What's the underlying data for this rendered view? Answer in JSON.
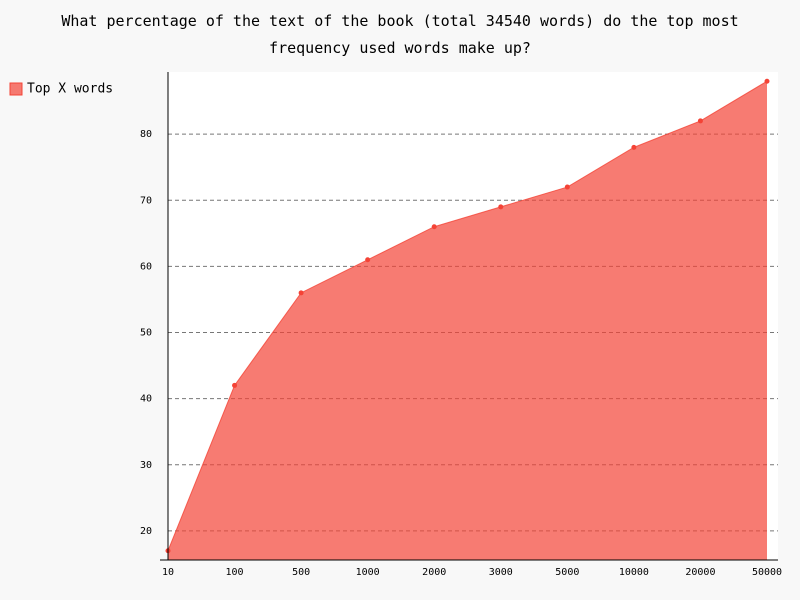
{
  "chart_data": {
    "type": "area",
    "title": "What percentage of the text of the book (total 34540 words) do the top most frequency used words make up?",
    "categories": [
      "10",
      "100",
      "500",
      "1000",
      "2000",
      "3000",
      "5000",
      "10000",
      "20000",
      "50000"
    ],
    "series": [
      {
        "name": "Top X words",
        "color": "#f44336",
        "values": [
          17,
          42,
          56,
          61,
          66,
          69,
          72,
          78,
          82,
          88
        ]
      }
    ],
    "ylim": [
      15.6,
      89.4
    ],
    "yticks": [
      20,
      30,
      40,
      50,
      60,
      70,
      80
    ],
    "grid": true,
    "legend": "left"
  }
}
